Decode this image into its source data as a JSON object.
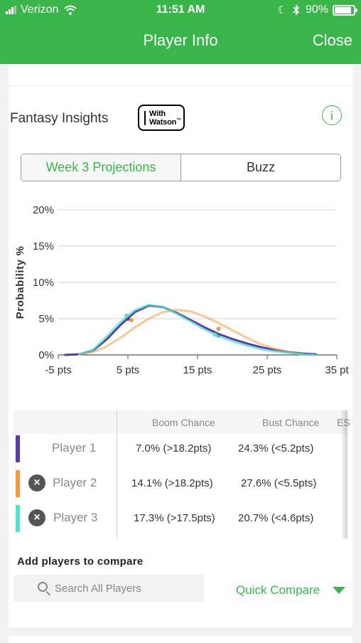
{
  "status_bar": {
    "carrier": "Verizon",
    "time": "11:51 AM",
    "battery": "90%",
    "battery_level": 0.9,
    "icons": [
      "signal-bars-icon",
      "wifi-icon",
      "moon-icon",
      "bluetooth-icon",
      "battery-icon"
    ]
  },
  "header": {
    "title": "Player Info",
    "close_label": "Close"
  },
  "insights": {
    "title": "Fantasy Insights",
    "watson_line1": "With",
    "watson_line2": "Watson",
    "watson_mark": "™",
    "info_glyph": "i"
  },
  "tabs": [
    {
      "label": "Week 3 Projections",
      "active": true
    },
    {
      "label": "Buzz",
      "active": false
    }
  ],
  "chart_data": {
    "type": "line",
    "xlabel": "",
    "ylabel": "Probability %",
    "x_ticks": [
      "-5 pts",
      "5 pts",
      "15 pts",
      "25 pts",
      "35 pt"
    ],
    "y_ticks": [
      "0%",
      "5%",
      "10%",
      "15%",
      "20%"
    ],
    "xlim": [
      -5,
      35
    ],
    "ylim": [
      0,
      20
    ],
    "grid": true,
    "series": [
      {
        "color": "#5d3aa6",
        "x": [
          -4,
          -2,
          0,
          2,
          4,
          6,
          8,
          10,
          12,
          14,
          16,
          18,
          20,
          22,
          24,
          26,
          28,
          30,
          32
        ],
        "y": [
          0.0,
          0.1,
          0.6,
          2.2,
          4.2,
          5.9,
          6.8,
          6.6,
          5.8,
          4.8,
          3.8,
          2.9,
          2.2,
          1.6,
          1.1,
          0.7,
          0.4,
          0.2,
          0.1
        ],
        "markers": [
          {
            "x": 5,
            "y": 5.0
          },
          {
            "x": 18,
            "y": 2.7
          }
        ]
      },
      {
        "color": "#f39a3c",
        "x": [
          -2,
          0,
          2,
          4,
          6,
          8,
          10,
          12,
          14,
          16,
          18,
          20,
          22,
          24,
          26,
          28,
          30
        ],
        "y": [
          0.1,
          0.4,
          1.2,
          2.4,
          3.8,
          5.0,
          5.9,
          6.2,
          6.0,
          5.3,
          4.4,
          3.4,
          2.4,
          1.5,
          0.9,
          0.4,
          0.1
        ],
        "markers": [
          {
            "x": 5.5,
            "y": 4.8
          },
          {
            "x": 18,
            "y": 3.6
          }
        ]
      },
      {
        "color": "#4fe3d0",
        "x": [
          -2,
          0,
          2,
          4,
          6,
          8,
          10,
          12,
          14,
          16,
          18,
          20,
          22,
          24,
          26,
          28,
          30,
          32
        ],
        "y": [
          0.1,
          0.7,
          2.6,
          4.6,
          6.2,
          6.9,
          6.6,
          5.7,
          4.6,
          3.5,
          2.6,
          1.9,
          1.3,
          0.8,
          0.5,
          0.3,
          0.1,
          0.0
        ],
        "markers": [
          {
            "x": 4.8,
            "y": 5.4
          },
          {
            "x": 17.5,
            "y": 2.8
          }
        ]
      }
    ]
  },
  "table": {
    "headers": [
      "Boom Chance",
      "Bust Chance",
      "ES"
    ],
    "rows": [
      {
        "name": "Player 1",
        "color": "#5d3aa6",
        "removable": false,
        "boom": "7.0% (>18.2pts)",
        "bust": "24.3% (<5.2pts)"
      },
      {
        "name": "Player 2",
        "color": "#f39a3c",
        "removable": true,
        "boom": "14.1% (>18.2pts)",
        "bust": "27.6% (<5.5pts)"
      },
      {
        "name": "Player 3",
        "color": "#4fe3d0",
        "removable": true,
        "boom": "17.3% (>17.5pts)",
        "bust": "20.7% (<4.6pts)"
      }
    ]
  },
  "compare": {
    "label": "Add players to compare",
    "search_placeholder": "Search All Players",
    "search_value": "",
    "quick_compare_label": "Quick Compare"
  },
  "colors": {
    "accent": "#3ab54a"
  }
}
